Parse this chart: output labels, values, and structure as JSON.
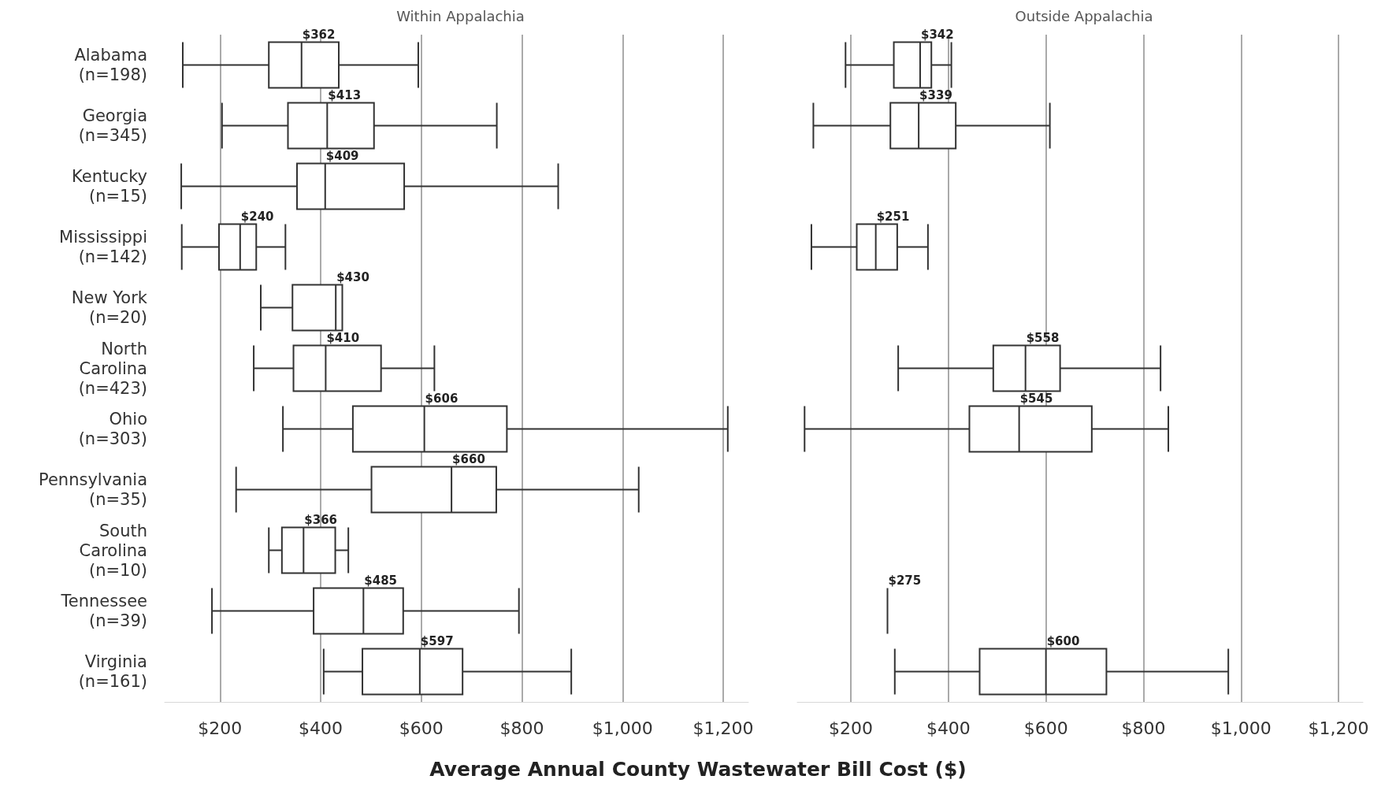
{
  "chart_data": [
    {
      "type": "box",
      "title": "Within Appalachia",
      "xlabel": "Average Annual County Wastewater Bill Cost ($)",
      "orientation": "horizontal",
      "categories": [
        "Alabama\n(n=198)",
        "Georgia\n(n=345)",
        "Kentucky\n(n=15)",
        "Mississippi\n(n=142)",
        "New York\n(n=20)",
        "North\nCarolina\n(n=423)",
        "Ohio\n(n=303)",
        "Pennsylvania\n(n=35)",
        "South\nCarolina\n(n=10)",
        "Tennessee\n(n=39)",
        "Virginia\n(n=161)"
      ],
      "boxes": [
        {
          "low": 126,
          "q1": 297,
          "median": 362,
          "q3": 436,
          "high": 594
        },
        {
          "low": 204,
          "q1": 335,
          "median": 413,
          "q3": 506,
          "high": 750
        },
        {
          "low": 123,
          "q1": 353,
          "median": 409,
          "q3": 566,
          "high": 872
        },
        {
          "low": 124,
          "q1": 198,
          "median": 240,
          "q3": 272,
          "high": 330
        },
        {
          "low": 281,
          "q1": 344,
          "median": 430,
          "q3": 443,
          "high": 443
        },
        {
          "low": 267,
          "q1": 346,
          "median": 410,
          "q3": 520,
          "high": 626
        },
        {
          "low": 325,
          "q1": 464,
          "median": 606,
          "q3": 770,
          "high": 1209
        },
        {
          "low": 232,
          "q1": 501,
          "median": 660,
          "q3": 749,
          "high": 1032
        },
        {
          "low": 297,
          "q1": 323,
          "median": 366,
          "q3": 429,
          "high": 455
        },
        {
          "low": 184,
          "q1": 386,
          "median": 485,
          "q3": 564,
          "high": 794
        },
        {
          "low": 406,
          "q1": 483,
          "median": 597,
          "q3": 682,
          "high": 898
        }
      ],
      "value_labels": [
        "$362",
        "$413",
        "$409",
        "$240",
        "$430",
        "$410",
        "$606",
        "$660",
        "$366",
        "$485",
        "$597"
      ],
      "color": "#333333",
      "xlim": [
        90,
        1250
      ],
      "xticks": [
        {
          "value": 200,
          "label": "$200"
        },
        {
          "value": 400,
          "label": "$400"
        },
        {
          "value": 600,
          "label": "$600"
        },
        {
          "value": 800,
          "label": "$800"
        },
        {
          "value": 1000,
          "label": "$1,000"
        },
        {
          "value": 1200,
          "label": "$1,200"
        }
      ],
      "grid": "x"
    },
    {
      "type": "box",
      "title": "Outside Appalachia",
      "orientation": "horizontal",
      "tick_labels": "x",
      "boxes": [
        {
          "low": 189,
          "q1": 288,
          "median": 342,
          "q3": 365,
          "high": 406
        },
        {
          "low": 123,
          "q1": 281,
          "median": 339,
          "q3": 415,
          "high": 608
        },
        null,
        {
          "low": 119,
          "q1": 212,
          "median": 251,
          "q3": 295,
          "high": 358
        },
        null,
        {
          "low": 297,
          "q1": 492,
          "median": 558,
          "q3": 629,
          "high": 835
        },
        {
          "low": 105,
          "q1": 443,
          "median": 545,
          "q3": 694,
          "high": 851
        },
        null,
        null,
        {
          "low": 275,
          "q1": 275,
          "median": 275,
          "q3": 275,
          "high": 275
        },
        {
          "low": 290,
          "q1": 464,
          "median": 600,
          "q3": 724,
          "high": 974
        }
      ],
      "value_labels": [
        "$342",
        "$339",
        null,
        "$251",
        null,
        "$558",
        "$545",
        null,
        null,
        "$275",
        "$600"
      ],
      "color": "#333333",
      "xlim": [
        90,
        1250
      ],
      "xticks": [
        {
          "value": 200,
          "label": "$200"
        },
        {
          "value": 400,
          "label": "$400"
        },
        {
          "value": 600,
          "label": "$600"
        },
        {
          "value": 800,
          "label": "$800"
        },
        {
          "value": 1000,
          "label": "$1,000"
        },
        {
          "value": 1200,
          "label": "$1,200"
        }
      ],
      "grid": "x"
    }
  ]
}
